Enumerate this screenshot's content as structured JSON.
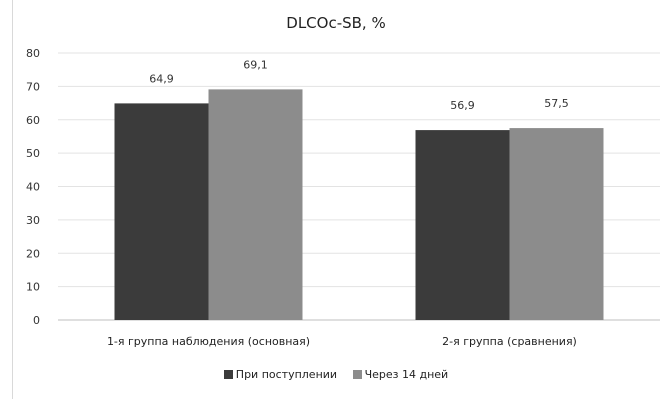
{
  "chart_data": {
    "type": "bar",
    "title": "DLCOc-SB, %",
    "categories": [
      "1-я группа наблюдения (основная)",
      "2-я группа (сравнения)"
    ],
    "series": [
      {
        "name": "При поступлении",
        "values": [
          64.9,
          56.9
        ],
        "labels": [
          "64,9",
          "56,9"
        ],
        "color": "#3b3b3b"
      },
      {
        "name": "Через 14 дней",
        "values": [
          69.1,
          57.5
        ],
        "labels": [
          "69,1",
          "57,5"
        ],
        "color": "#8c8c8c"
      }
    ],
    "yticks": [
      "0",
      "10",
      "20",
      "30",
      "40",
      "50",
      "60",
      "70",
      "80"
    ],
    "ylim": [
      0,
      80
    ],
    "grid": true,
    "legend_position": "bottom"
  }
}
